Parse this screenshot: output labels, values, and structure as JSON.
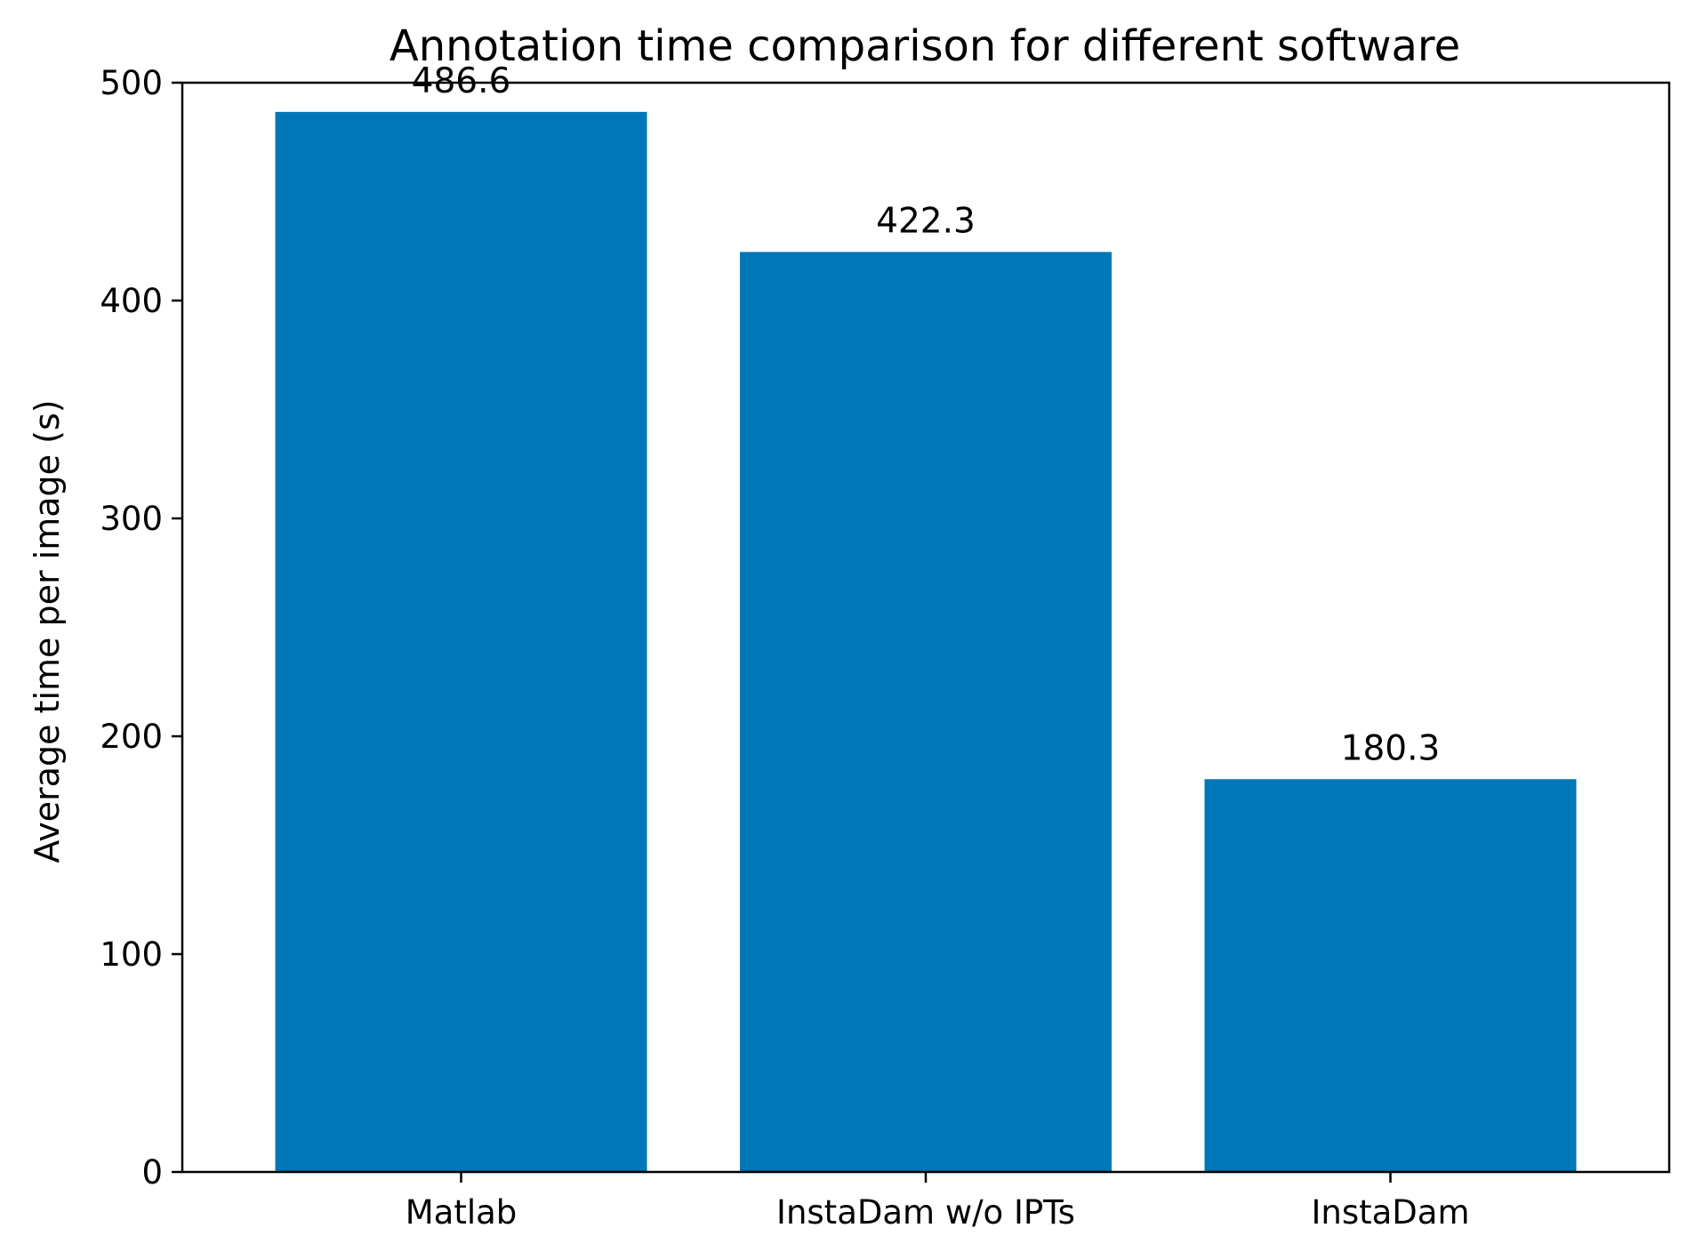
{
  "chart_data": {
    "type": "bar",
    "title": "Annotation time comparison for different software",
    "xlabel": "",
    "ylabel": "Average time per image (s)",
    "categories": [
      "Matlab",
      "InstaDam w/o IPTs",
      "InstaDam"
    ],
    "values": [
      486.6,
      422.3,
      180.3
    ],
    "data_labels": [
      "486.6",
      "422.3",
      "180.3"
    ],
    "ylim": [
      0,
      500
    ],
    "yticks": [
      0,
      100,
      200,
      300,
      400,
      500
    ],
    "ytick_labels": [
      "0",
      "100",
      "200",
      "300",
      "400",
      "500"
    ],
    "bar_color": "#0077b6",
    "grid": false,
    "legend": "none"
  }
}
